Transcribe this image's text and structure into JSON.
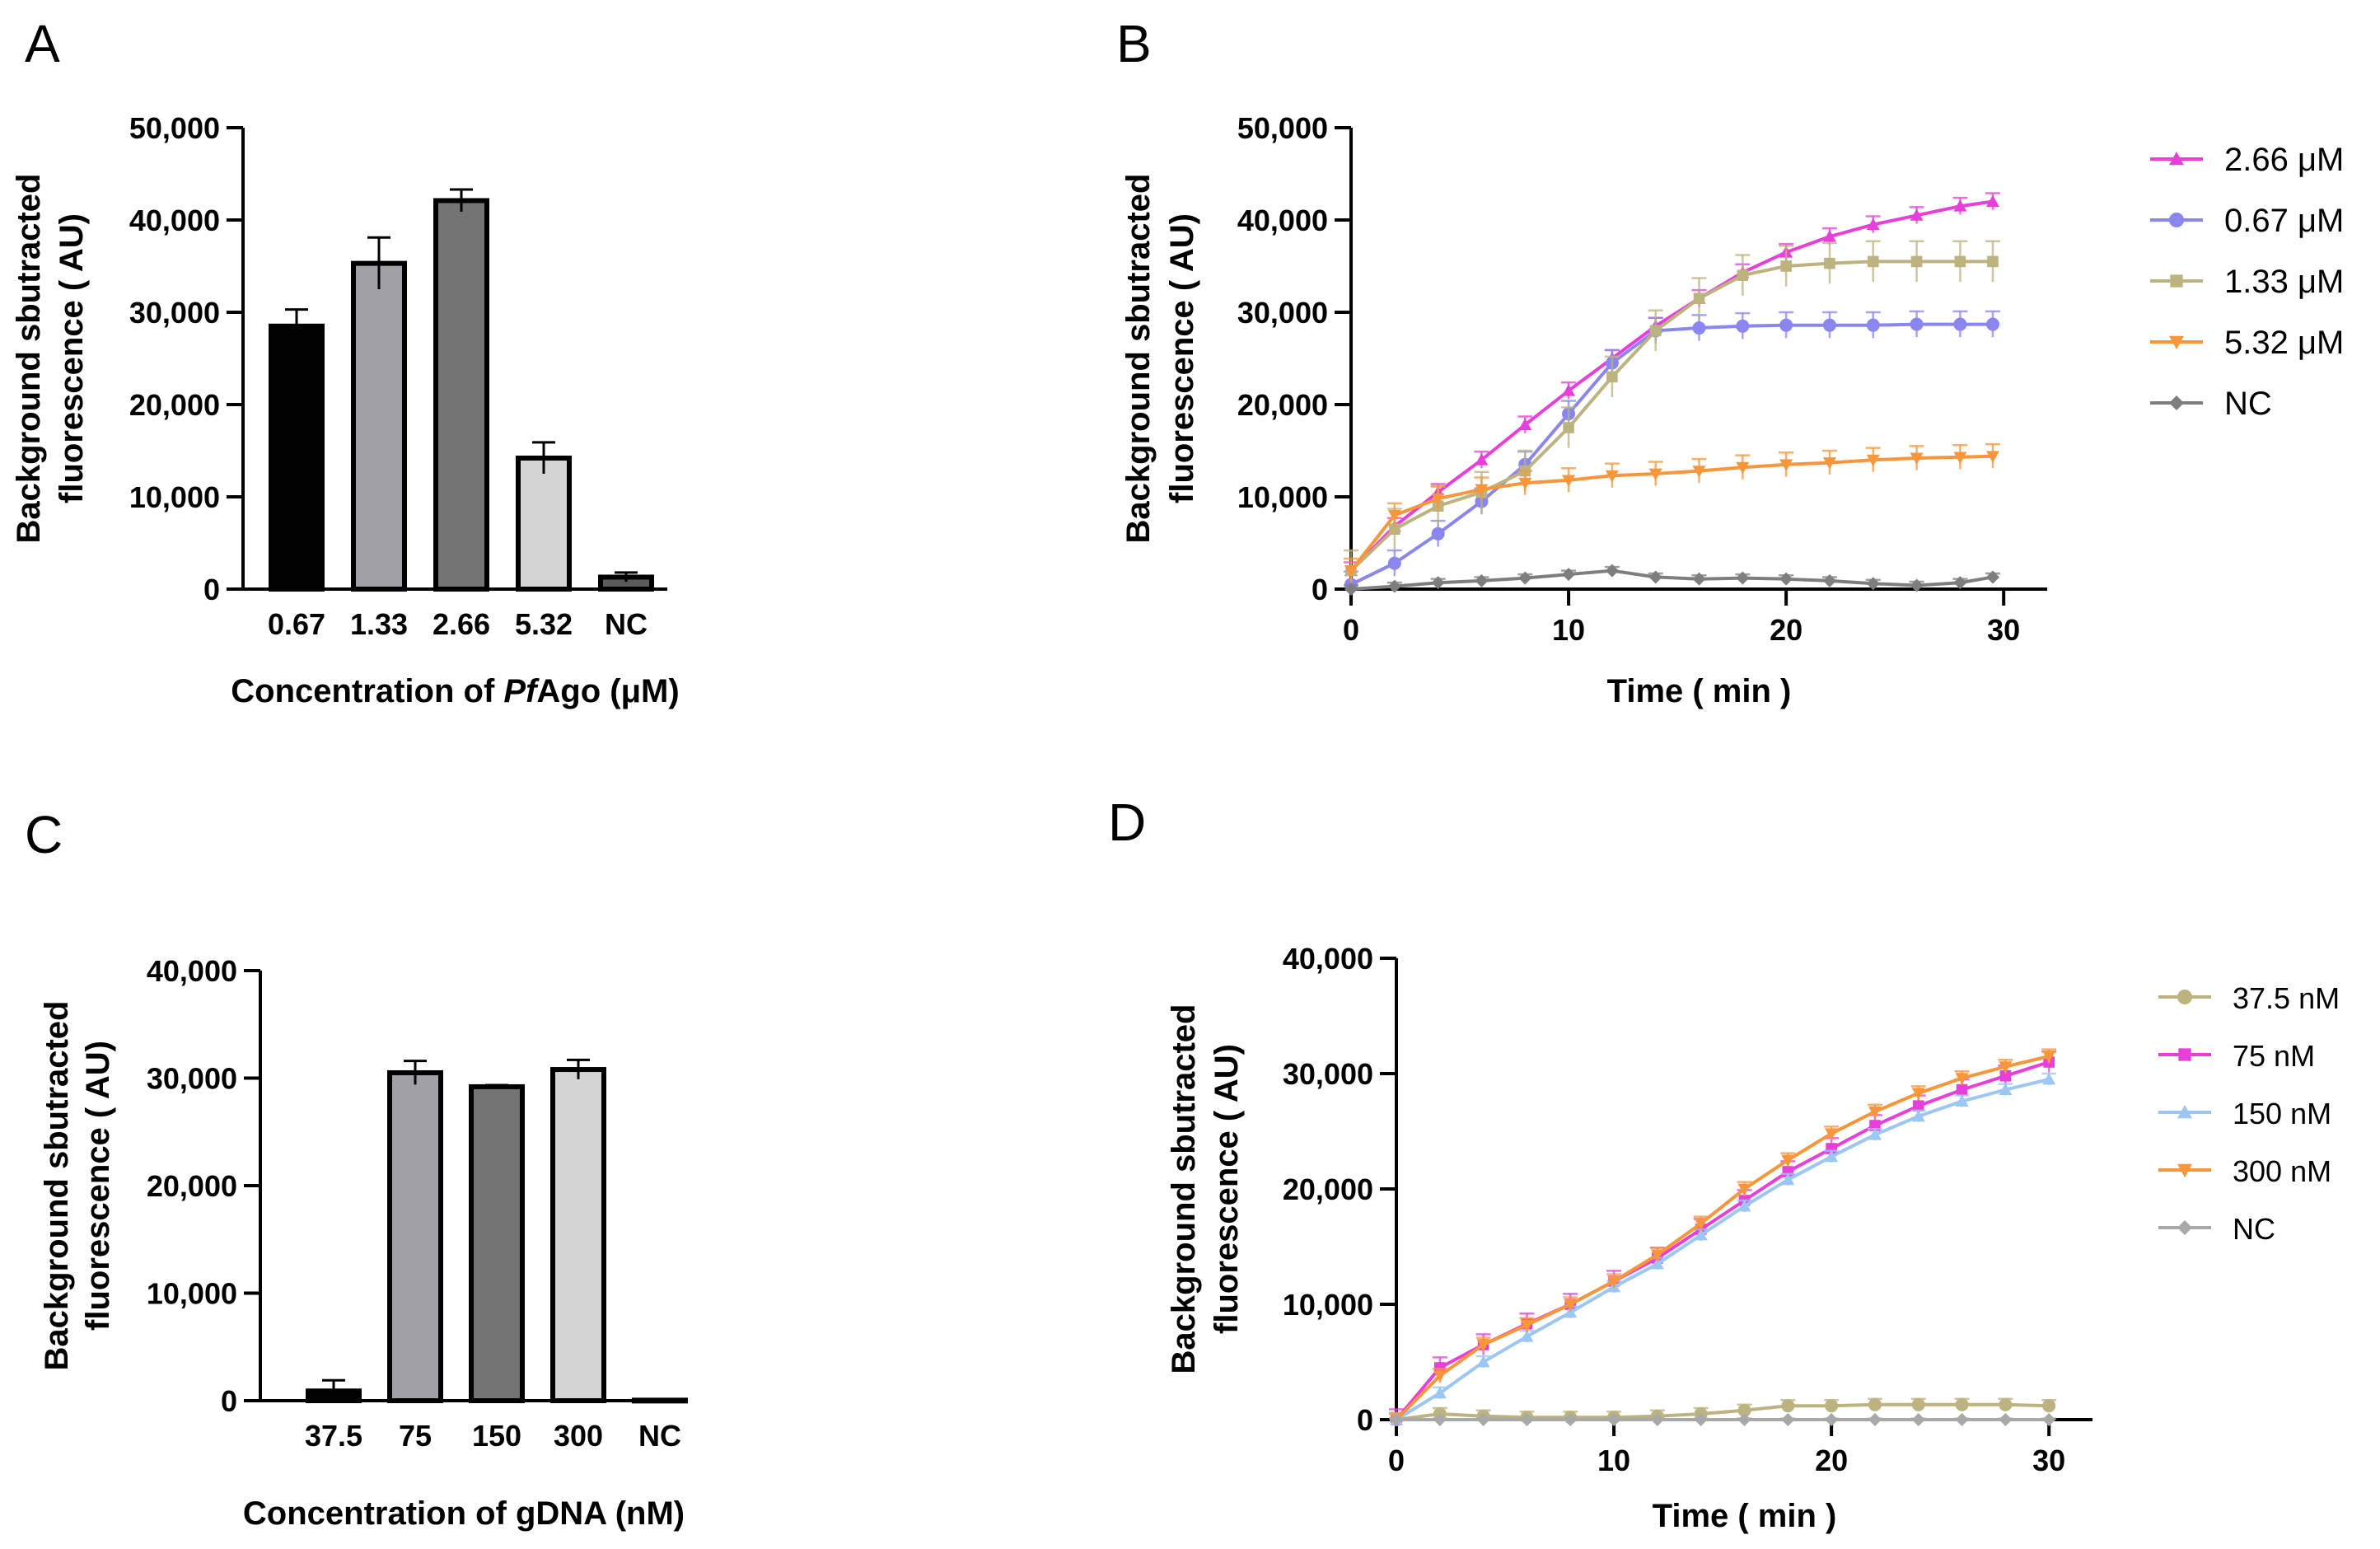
{
  "chart_data": [
    {
      "panel": "A",
      "type": "bar",
      "categories": [
        "0.67",
        "1.33",
        "2.66",
        "5.32",
        "NC"
      ],
      "values": [
        28500,
        35300,
        42100,
        14200,
        1300
      ],
      "errors": [
        1800,
        2800,
        1200,
        1700,
        500
      ],
      "colors": [
        "#000000",
        "#a0a0a6",
        "#747474",
        "#d4d4d4",
        "#5a5a5a"
      ],
      "ylabel_lines": [
        "Background sbutracted",
        "fluorescence ( AU)"
      ],
      "xlabel_parts": [
        "Concentration of ",
        "Pf",
        "Ago (μM)"
      ],
      "ylim": [
        0,
        50000
      ],
      "yticks": [
        0,
        10000,
        20000,
        30000,
        40000,
        50000
      ],
      "ytick_labels": [
        "0",
        "10,000",
        "20,000",
        "30,000",
        "40,000",
        "50,000"
      ]
    },
    {
      "panel": "B",
      "type": "line",
      "xlabel": "Time ( min )",
      "ylabel_lines": [
        "Background sbutracted",
        "fluorescence ( AU)"
      ],
      "xlim": [
        0,
        32
      ],
      "ylim": [
        0,
        50000
      ],
      "xticks": [
        0,
        10,
        20,
        30
      ],
      "xtick_labels": [
        "0",
        "10",
        "20",
        "30"
      ],
      "yticks": [
        0,
        10000,
        20000,
        30000,
        40000,
        50000
      ],
      "ytick_labels": [
        "0",
        "10,000",
        "20,000",
        "30,000",
        "40,000",
        "50,000"
      ],
      "x": [
        0,
        2,
        4,
        6,
        8,
        10,
        12,
        14,
        16,
        18,
        20,
        22,
        24,
        26,
        28,
        29.5
      ],
      "series": [
        {
          "name": "2.66 μM",
          "color": "#e83fdb",
          "marker": "triangle-up",
          "err": 900,
          "values": [
            2000,
            6800,
            10500,
            14000,
            17800,
            21500,
            25000,
            28500,
            31500,
            34300,
            36500,
            38200,
            39500,
            40500,
            41500,
            42000
          ]
        },
        {
          "name": "0.67 μM",
          "color": "#8a86f0",
          "marker": "circle",
          "err": 1400,
          "values": [
            500,
            2800,
            6000,
            9500,
            13500,
            19000,
            24500,
            28000,
            28300,
            28500,
            28600,
            28600,
            28600,
            28700,
            28700,
            28700
          ]
        },
        {
          "name": "1.33 μM",
          "color": "#bcb380",
          "marker": "square",
          "err": 2200,
          "values": [
            2000,
            6500,
            9000,
            10500,
            12800,
            17500,
            23000,
            28000,
            31500,
            34000,
            35000,
            35300,
            35500,
            35500,
            35500,
            35500
          ]
        },
        {
          "name": "5.32 μM",
          "color": "#f7963a",
          "marker": "triangle-down",
          "err": 1300,
          "values": [
            2000,
            8000,
            9800,
            10800,
            11500,
            11800,
            12300,
            12500,
            12800,
            13200,
            13500,
            13700,
            14000,
            14200,
            14300,
            14400
          ]
        },
        {
          "name": "NC",
          "color": "#7e7e7e",
          "marker": "diamond",
          "err": 400,
          "values": [
            0,
            300,
            700,
            900,
            1200,
            1600,
            2000,
            1300,
            1100,
            1200,
            1100,
            900,
            600,
            400,
            700,
            1300
          ]
        }
      ]
    },
    {
      "panel": "C",
      "type": "bar",
      "categories": [
        "37.5",
        "75",
        "150",
        "300",
        "NC"
      ],
      "values": [
        900,
        30500,
        29200,
        30800,
        50
      ],
      "errors": [
        1000,
        1100,
        150,
        900,
        30
      ],
      "colors": [
        "#000000",
        "#a0a0a6",
        "#747474",
        "#d4d4d4",
        "#ffffff"
      ],
      "ylabel_lines": [
        "Background sbutracted",
        "fluorescence ( AU)"
      ],
      "xlabel": "Concentration of gDNA (nM)",
      "ylim": [
        0,
        40000
      ],
      "yticks": [
        0,
        10000,
        20000,
        30000,
        40000
      ],
      "ytick_labels": [
        "0",
        "10,000",
        "20,000",
        "30,000",
        "40,000"
      ]
    },
    {
      "panel": "D",
      "type": "line",
      "xlabel": "Time ( min )",
      "ylabel_lines": [
        "Background sbutracted",
        "fluorescence ( AU)"
      ],
      "xlim": [
        0,
        32
      ],
      "ylim": [
        0,
        40000
      ],
      "xticks": [
        0,
        10,
        20,
        30
      ],
      "xtick_labels": [
        "0",
        "10",
        "20",
        "30"
      ],
      "yticks": [
        0,
        10000,
        20000,
        30000,
        40000
      ],
      "ytick_labels": [
        "0",
        "10,000",
        "20,000",
        "30,000",
        "40,000"
      ],
      "x": [
        0,
        2,
        4,
        6,
        8,
        10,
        12,
        14,
        16,
        18,
        20,
        22,
        24,
        26,
        28,
        30
      ],
      "series": [
        {
          "name": "37.5 nM",
          "color": "#bcb380",
          "marker": "circle",
          "err": 500,
          "values": [
            0,
            500,
            300,
            200,
            200,
            200,
            300,
            500,
            800,
            1200,
            1200,
            1300,
            1300,
            1300,
            1300,
            1200
          ]
        },
        {
          "name": "75 nM",
          "color": "#e83fdb",
          "marker": "square",
          "err": 900,
          "values": [
            0,
            4500,
            6500,
            8300,
            10000,
            12000,
            14000,
            16500,
            19000,
            21500,
            23500,
            25500,
            27200,
            28600,
            29800,
            31000
          ]
        },
        {
          "name": "150 nM",
          "color": "#9cc6f4",
          "marker": "triangle-up",
          "err": 500,
          "values": [
            0,
            2300,
            5000,
            7200,
            9300,
            11500,
            13500,
            16000,
            18500,
            20800,
            22800,
            24700,
            26300,
            27600,
            28600,
            29500
          ]
        },
        {
          "name": "300 nM",
          "color": "#f7963a",
          "marker": "triangle-down",
          "err": 600,
          "values": [
            0,
            3800,
            6500,
            8200,
            10000,
            12000,
            14300,
            17000,
            20000,
            22500,
            24800,
            26700,
            28300,
            29600,
            30600,
            31500
          ]
        },
        {
          "name": "NC",
          "color": "#a8a8a8",
          "marker": "diamond",
          "err": 100,
          "values": [
            0,
            0,
            0,
            0,
            0,
            0,
            0,
            0,
            0,
            0,
            0,
            0,
            0,
            0,
            0,
            0
          ]
        }
      ]
    }
  ]
}
